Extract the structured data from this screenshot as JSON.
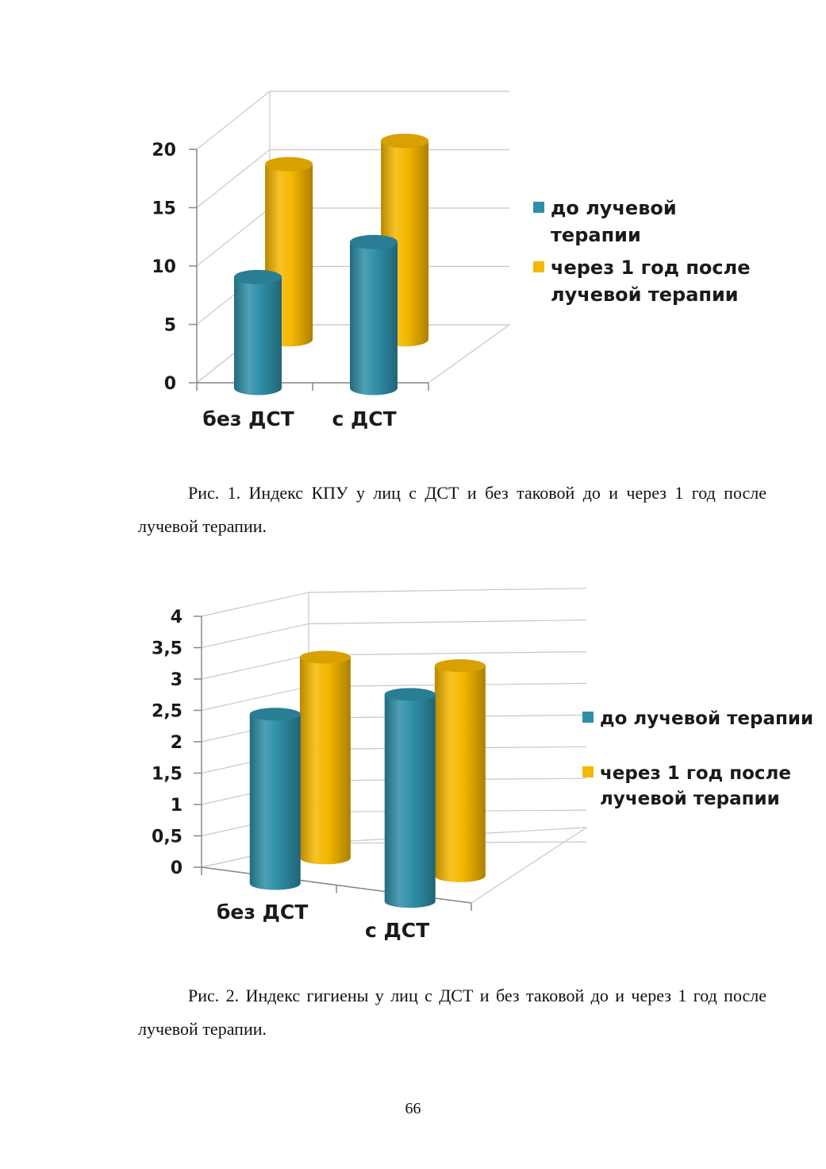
{
  "chart_data": [
    {
      "type": "bar",
      "categories": [
        "без ДСТ",
        "с ДСТ"
      ],
      "series": [
        {
          "name": "до лучевой терапии",
          "values": [
            9.5,
            12.5
          ]
        },
        {
          "name": "через 1 год после лучевой терапии",
          "values": [
            15,
            17
          ]
        }
      ],
      "ylim": [
        0,
        20
      ],
      "yticks": [
        "0",
        "5",
        "10",
        "15",
        "20"
      ],
      "grid": true,
      "legend": "right",
      "colors": [
        "#2f8fa8",
        "#f5b700"
      ],
      "legend_lines": [
        [
          "до лучевой",
          "терапии"
        ],
        [
          "через 1 год после",
          "лучевой терапии"
        ]
      ]
    },
    {
      "type": "bar",
      "categories": [
        "без ДСТ",
        "с ДСТ"
      ],
      "series": [
        {
          "name": "до лучевой терапии",
          "values": [
            2.7,
            3.3
          ]
        },
        {
          "name": "через 1 год после лучевой терапии",
          "values": [
            3.2,
            3.35
          ]
        }
      ],
      "ylim": [
        0,
        4
      ],
      "yticks": [
        "0",
        "0,5",
        "1",
        "1,5",
        "2",
        "2,5",
        "3",
        "3,5",
        "4"
      ],
      "grid": true,
      "legend": "right",
      "colors": [
        "#2f8fa8",
        "#f5b700"
      ],
      "legend_lines": [
        [
          "до лучевой терапии"
        ],
        [
          "через 1 год после",
          "лучевой терапии"
        ]
      ]
    }
  ],
  "captions": [
    "Рис. 1. Индекс КПУ  у лиц с ДСТ и без таковой до и через 1 год после лучевой терапии.",
    "Рис. 2. Индекс гигиены  у лиц с ДСТ и без таковой до и через 1 год после лучевой терапии."
  ],
  "page_number": "66"
}
